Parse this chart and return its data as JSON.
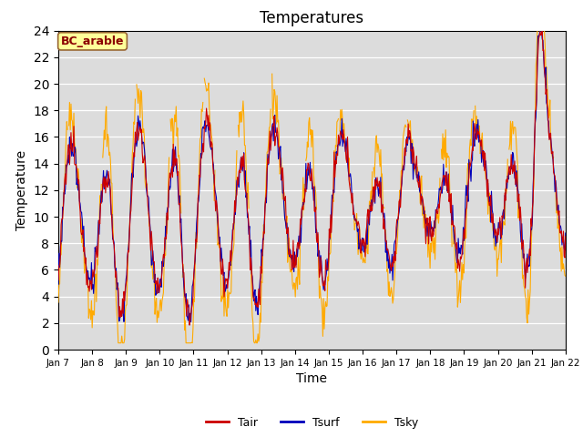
{
  "title": "Temperatures",
  "xlabel": "Time",
  "ylabel": "Temperature",
  "ylim": [
    0,
    24
  ],
  "annotation": "BC_arable",
  "legend_labels": [
    "Tair",
    "Tsurf",
    "Tsky"
  ],
  "colors": {
    "Tair": "#cc0000",
    "Tsurf": "#0000bb",
    "Tsky": "#ffaa00"
  },
  "xtick_labels": [
    "Jan 7",
    "Jan 8",
    "Jan 9",
    "Jan 10",
    "Jan 11",
    "Jan 12",
    "Jan 13",
    "Jan 14",
    "Jan 15",
    "Jan 16",
    "Jan 17",
    "Jan 18",
    "Jan 19",
    "Jan 20",
    "Jan 21",
    "Jan 22"
  ],
  "background_color": "#dcdcdc",
  "n_points": 720,
  "seed": 12345
}
